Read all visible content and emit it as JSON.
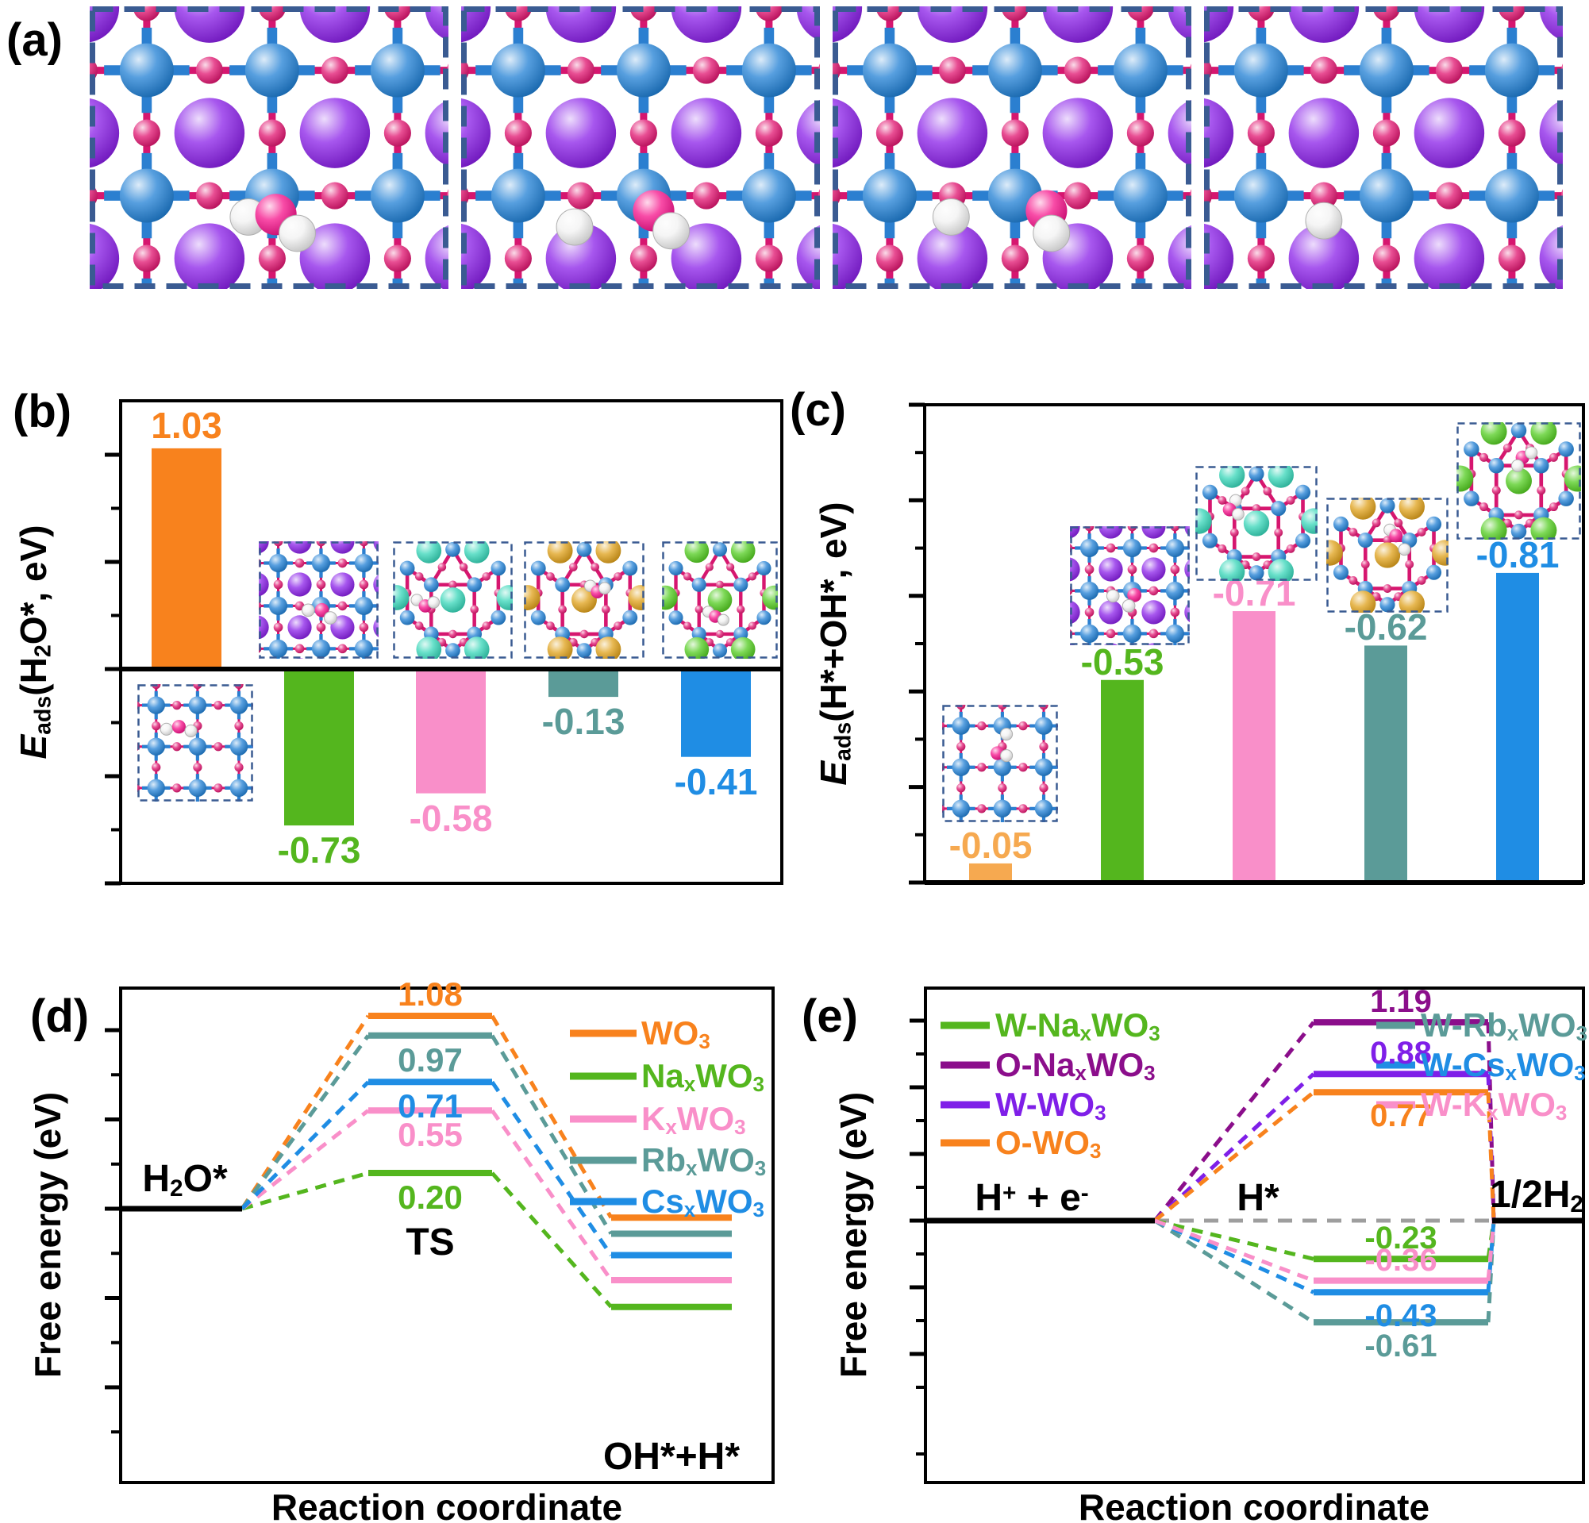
{
  "figure": {
    "panel_labels": {
      "a": "(a)",
      "b": "(b)",
      "c": "(c)",
      "d": "(d)",
      "e": "(e)"
    },
    "atom_colors": {
      "W": "#1f7fd4",
      "O": "#e0136f",
      "Na": "#8a1fe8",
      "K": "#35d6b8",
      "Rb": "#dfa018",
      "Cs": "#52cc1f",
      "H": "#f2f2f2"
    },
    "colors": {
      "bond": "#d6166f",
      "w_arm": "#2b7fd0",
      "border": "#3a5b92",
      "axis": "#000000",
      "zero_ref": "#9e9e9e"
    }
  },
  "panel_a": {
    "images": [
      {
        "name": "naxwo3-surface-h2o-adsorbed",
        "kind": "sq",
        "cation": "Na",
        "ads": [
          [
            "H",
            -0.19,
            0.17
          ],
          [
            "O",
            0.03,
            0.15
          ],
          [
            "H",
            0.2,
            0.3
          ]
        ]
      },
      {
        "name": "naxwo3-surface-h2o-dissociating",
        "kind": "sq",
        "cation": "Na",
        "ads": [
          [
            "H",
            -0.55,
            0.25
          ],
          [
            "O",
            0.08,
            0.12
          ],
          [
            "H",
            0.22,
            0.28
          ]
        ]
      },
      {
        "name": "naxwo3-surface-transition-state",
        "kind": "sq",
        "cation": "Na",
        "ads": [
          [
            "H",
            -0.51,
            0.17
          ],
          [
            "O",
            0.25,
            0.12
          ],
          [
            "H",
            0.29,
            0.3
          ]
        ]
      },
      {
        "name": "naxwo3-surface-h-adsorbed",
        "kind": "sq",
        "cation": "Na",
        "ads": [
          [
            "H",
            -0.5,
            0.2
          ]
        ]
      }
    ]
  },
  "chart_data": [
    {
      "id": "b",
      "type": "bar",
      "ylabel_parts": [
        [
          "E",
          "i"
        ],
        [
          "ads",
          "s"
        ],
        [
          "(H",
          ""
        ],
        [
          "2",
          "s"
        ],
        [
          "O*, eV)",
          ""
        ]
      ],
      "ylim": [
        -1.0,
        1.25
      ],
      "yticks": [
        "1.0",
        "0.5",
        "0.0",
        "-0.5",
        "-1.0"
      ],
      "categories": [
        [
          [
            "WO",
            ""
          ],
          [
            "3",
            "s"
          ]
        ],
        [
          [
            "Na",
            ""
          ],
          [
            "x",
            "s"
          ],
          [
            "WO",
            ""
          ],
          [
            "3",
            "s"
          ]
        ],
        [
          [
            "K",
            ""
          ],
          [
            "x",
            "s"
          ],
          [
            "WO",
            ""
          ],
          [
            "3",
            "s"
          ]
        ],
        [
          [
            "Rb",
            ""
          ],
          [
            "x",
            "s"
          ],
          [
            "WO",
            ""
          ],
          [
            "3",
            "s"
          ]
        ],
        [
          [
            "Cs",
            ""
          ],
          [
            "x",
            "s"
          ],
          [
            "WO",
            ""
          ],
          [
            "3",
            "s"
          ]
        ]
      ],
      "values": [
        1.03,
        -0.73,
        -0.58,
        -0.13,
        -0.41
      ],
      "value_labels": [
        "1.03",
        "-0.73",
        "-0.58",
        "-0.13",
        "-0.41"
      ],
      "bar_colors": [
        "#f8821d",
        "#54b61e",
        "#f98fc9",
        "#5b9b98",
        "#1f8de4"
      ],
      "insets": [
        {
          "name": "wo3-h2o",
          "kind": "sq",
          "cation": null,
          "ads": [
            [
              "H",
              -0.75,
              -0.42
            ],
            [
              "O",
              -0.45,
              -0.48
            ],
            [
              "H",
              -0.16,
              -0.38
            ]
          ]
        },
        {
          "name": "naxwo3-h2o",
          "kind": "sq",
          "cation": "Na",
          "ads": [
            [
              "H",
              -0.3,
              0.1
            ],
            [
              "O",
              0.02,
              0.1
            ],
            [
              "H",
              0.22,
              0.28
            ]
          ]
        },
        {
          "name": "kxwo3-h2o",
          "kind": "hex",
          "cation": "K",
          "ads": [
            [
              "H",
              0.2,
              0.5
            ],
            [
              "O",
              0.27,
              0.55
            ],
            [
              "H",
              0.34,
              0.52
            ]
          ]
        },
        {
          "name": "rbxwo3-h2o",
          "kind": "hex",
          "cation": "Rb",
          "ads": [
            [
              "H",
              0.55,
              0.38
            ],
            [
              "O",
              0.61,
              0.43
            ],
            [
              "H",
              0.67,
              0.4
            ]
          ]
        },
        {
          "name": "csxwo3-h2o",
          "kind": "hex",
          "cation": "Cs",
          "ads": [
            [
              "H",
              0.4,
              0.6
            ],
            [
              "O",
              0.46,
              0.64
            ],
            [
              "H",
              0.53,
              0.67
            ]
          ]
        }
      ]
    },
    {
      "id": "c",
      "type": "bar",
      "inverted": true,
      "ylabel_parts": [
        [
          "E",
          "i"
        ],
        [
          "ads",
          "s"
        ],
        [
          "(H*+OH*, eV)",
          ""
        ]
      ],
      "ylim": [
        0,
        -1.25
      ],
      "yticks": [
        "-1.25",
        "-1.00",
        "-0.75",
        "-0.50",
        "-0.25",
        "0.00"
      ],
      "categories": [
        [
          [
            "WO",
            ""
          ],
          [
            "3",
            "s"
          ]
        ],
        [
          [
            "Na",
            ""
          ],
          [
            "x",
            "s"
          ],
          [
            "WO",
            ""
          ],
          [
            "3",
            "s"
          ]
        ],
        [
          [
            "K",
            ""
          ],
          [
            "x",
            "s"
          ],
          [
            "WO",
            ""
          ],
          [
            "3",
            "s"
          ]
        ],
        [
          [
            "Rb",
            ""
          ],
          [
            "x",
            "s"
          ],
          [
            "WO",
            ""
          ],
          [
            "3",
            "s"
          ]
        ],
        [
          [
            "Cs",
            ""
          ],
          [
            "x",
            "s"
          ],
          [
            "WO",
            ""
          ],
          [
            "3",
            "s"
          ]
        ]
      ],
      "values": [
        -0.05,
        -0.53,
        -0.71,
        -0.62,
        -0.81
      ],
      "value_labels": [
        "-0.05",
        "-0.53",
        "-0.71",
        "-0.62",
        "-0.81"
      ],
      "bar_colors": [
        "#f6a950",
        "#54b61e",
        "#f98fc9",
        "#5b9b98",
        "#1f8de4"
      ],
      "insets": [
        {
          "name": "wo3-h-oh",
          "kind": "sq",
          "cation": null,
          "ads": [
            [
              "H",
              0.1,
              -0.8
            ],
            [
              "O",
              -0.12,
              -0.34
            ],
            [
              "H",
              0.1,
              -0.28
            ]
          ]
        },
        {
          "name": "naxwo3-h-oh",
          "kind": "sq",
          "cation": "Na",
          "ads": [
            [
              "H",
              -0.45,
              0.12
            ],
            [
              "O",
              0.05,
              0.1
            ],
            [
              "H",
              -0.08,
              0.35
            ]
          ]
        },
        {
          "name": "kxwo3-h-oh",
          "kind": "hex",
          "cation": "K",
          "ads": [
            [
              "H",
              0.33,
              0.3
            ],
            [
              "O",
              0.28,
              0.38
            ],
            [
              "H",
              0.35,
              0.42
            ]
          ]
        },
        {
          "name": "rbxwo3-h-oh",
          "kind": "hex",
          "cation": "Rb",
          "ads": [
            [
              "H",
              0.52,
              0.28
            ],
            [
              "O",
              0.57,
              0.33
            ],
            [
              "H",
              0.64,
              0.45
            ]
          ]
        },
        {
          "name": "csxwo3-h-oh",
          "kind": "hex",
          "cation": "Cs",
          "ads": [
            [
              "O",
              0.53,
              0.3
            ],
            [
              "H",
              0.6,
              0.26
            ],
            [
              "H",
              0.49,
              0.37
            ]
          ]
        }
      ]
    },
    {
      "id": "d",
      "type": "energy-profile",
      "xlabel": "Reaction coordinate",
      "ylabel": "Free energy (eV)",
      "yticks": [
        "1.0",
        "0.5",
        "0.0",
        "-0.5"
      ],
      "initial_label_parts": [
        [
          "H",
          ""
        ],
        [
          "2",
          "s"
        ],
        [
          "O*",
          ""
        ]
      ],
      "ts_label": "TS",
      "final_label_parts": [
        [
          "OH*+H*",
          ""
        ]
      ],
      "initial_energy": 0.0,
      "series": [
        {
          "name_parts": [
            [
              "WO",
              ""
            ],
            [
              "3",
              "s"
            ]
          ],
          "color": "#f8821d",
          "ts": 1.08,
          "ts_label": "1.08",
          "ts_label_side": "above",
          "final": -0.05
        },
        {
          "name_parts": [
            [
              "Na",
              ""
            ],
            [
              "x",
              "s"
            ],
            [
              "WO",
              ""
            ],
            [
              "3",
              "s"
            ]
          ],
          "color": "#54b61e",
          "ts": 0.2,
          "ts_label": "0.20",
          "ts_label_side": "below",
          "final": -0.55
        },
        {
          "name_parts": [
            [
              "K",
              ""
            ],
            [
              "x",
              "s"
            ],
            [
              "WO",
              ""
            ],
            [
              "3",
              "s"
            ]
          ],
          "color": "#f98fc9",
          "ts": 0.55,
          "ts_label": "0.55",
          "ts_label_side": "below",
          "final": -0.4
        },
        {
          "name_parts": [
            [
              "Rb",
              ""
            ],
            [
              "x",
              "s"
            ],
            [
              "WO",
              ""
            ],
            [
              "3",
              "s"
            ]
          ],
          "color": "#5b9b98",
          "ts": 0.97,
          "ts_label": "0.97",
          "ts_label_side": "below",
          "final": -0.14
        },
        {
          "name_parts": [
            [
              "Cs",
              ""
            ],
            [
              "x",
              "s"
            ],
            [
              "WO",
              ""
            ],
            [
              "3",
              "s"
            ]
          ],
          "color": "#1f8de4",
          "ts": 0.71,
          "ts_label": "0.71",
          "ts_label_side": "below",
          "final": -0.26
        }
      ]
    },
    {
      "id": "e",
      "type": "energy-profile",
      "xlabel": "Reaction coordinate",
      "ylabel": "Free energy (eV)",
      "yticks": [
        "1.2",
        "0.8",
        "0.4",
        "0.0",
        "-0.4",
        "-0.8"
      ],
      "initial_label_parts": [
        [
          "H",
          ""
        ],
        [
          "+",
          "p"
        ],
        [
          " + e",
          ""
        ],
        [
          "-",
          "p"
        ]
      ],
      "mid_label_parts": [
        [
          "H*",
          ""
        ]
      ],
      "final_label_parts": [
        [
          "1/2H",
          ""
        ],
        [
          "2",
          "s"
        ]
      ],
      "series": [
        {
          "name_parts": [
            [
              "W-Na",
              ""
            ],
            [
              "x",
              "s"
            ],
            [
              "WO",
              ""
            ],
            [
              "3",
              "s"
            ]
          ],
          "color": "#54b61e",
          "value": -0.23,
          "label": "-0.23",
          "label_side": "above",
          "legend": "left"
        },
        {
          "name_parts": [
            [
              "O-Na",
              ""
            ],
            [
              "x",
              "s"
            ],
            [
              "WO",
              ""
            ],
            [
              "3",
              "s"
            ]
          ],
          "color": "#8b0e8b",
          "value": 1.19,
          "label": "1.19",
          "label_side": "above",
          "legend": "left"
        },
        {
          "name_parts": [
            [
              "W-WO",
              ""
            ],
            [
              "3",
              "s"
            ]
          ],
          "color": "#7f1fe8",
          "value": 0.88,
          "label": "0.88",
          "label_side": "above",
          "legend": "left"
        },
        {
          "name_parts": [
            [
              "O-WO",
              ""
            ],
            [
              "3",
              "s"
            ]
          ],
          "color": "#f8821d",
          "value": 0.77,
          "label": "0.77",
          "label_side": "below",
          "legend": "left"
        },
        {
          "name_parts": [
            [
              "W-Rb",
              ""
            ],
            [
              "x",
              "s"
            ],
            [
              "WO",
              ""
            ],
            [
              "3",
              "s"
            ]
          ],
          "color": "#5b9b98",
          "value": -0.61,
          "label": "-0.61",
          "label_side": "below",
          "legend": "right"
        },
        {
          "name_parts": [
            [
              "W-Cs",
              ""
            ],
            [
              "x",
              "s"
            ],
            [
              "WO",
              ""
            ],
            [
              "3",
              "s"
            ]
          ],
          "color": "#1f8de4",
          "value": -0.43,
          "label": "-0.43",
          "label_side": "below",
          "legend": "right"
        },
        {
          "name_parts": [
            [
              "W-K",
              ""
            ],
            [
              "x",
              "s"
            ],
            [
              "WO",
              ""
            ],
            [
              "3",
              "s"
            ]
          ],
          "color": "#f98fc9",
          "value": -0.36,
          "label": "-0.36",
          "label_side": "above",
          "legend": "right"
        }
      ]
    }
  ]
}
